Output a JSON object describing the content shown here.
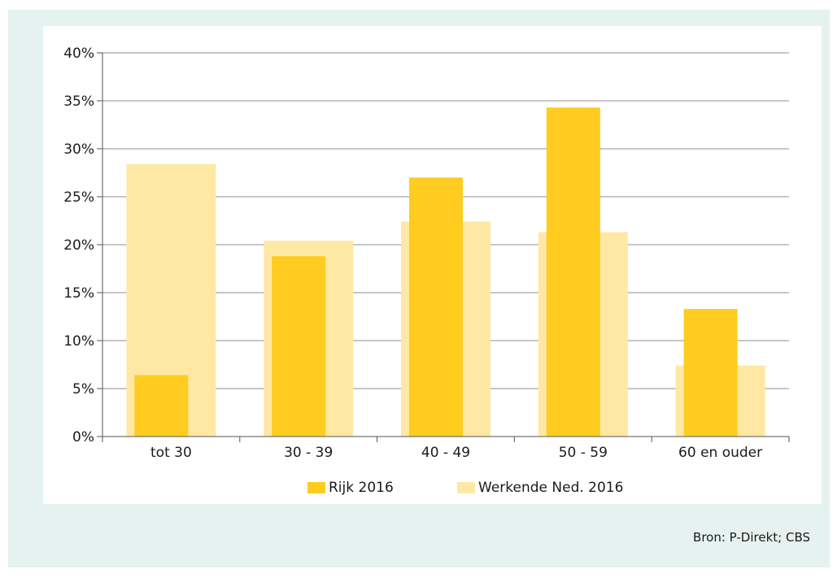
{
  "chart_data": {
    "type": "bar",
    "categories": [
      "tot 30",
      "30 - 39",
      "40 - 49",
      "50 - 59",
      "60 en ouder"
    ],
    "series": [
      {
        "name": "Rijk 2016",
        "values": [
          6.4,
          18.8,
          27.0,
          34.3,
          13.3
        ],
        "color": "#ffcc1f"
      },
      {
        "name": "Werkende Ned. 2016",
        "values": [
          28.4,
          20.4,
          22.4,
          21.3,
          7.4
        ],
        "color": "#ffe8a3"
      }
    ],
    "ylim": [
      0,
      40
    ],
    "yticks": [
      "0%",
      "5%",
      "10%",
      "15%",
      "20%",
      "25%",
      "30%",
      "35%",
      "40%"
    ],
    "grid": true,
    "legend_position": "bottom"
  },
  "source_text": "Bron: P-Direkt; CBS"
}
